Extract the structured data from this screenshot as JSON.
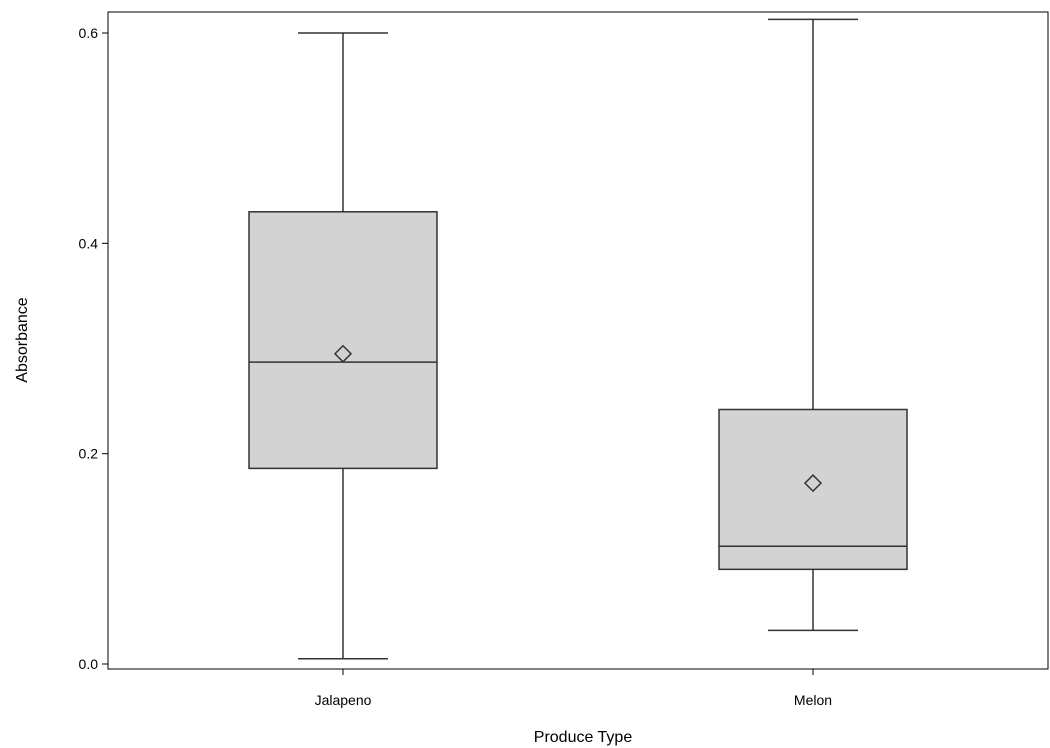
{
  "chart_data": {
    "type": "box",
    "xlabel": "Produce Type",
    "ylabel": "Absorbance",
    "ylim": [
      -0.005,
      0.62
    ],
    "yticks": [
      0.0,
      0.2,
      0.4,
      0.6
    ],
    "ytick_labels": [
      "0.0",
      "0.2",
      "0.4",
      "0.6"
    ],
    "categories": [
      "Jalapeno",
      "Melon"
    ],
    "boxes": [
      {
        "category": "Jalapeno",
        "min": 0.005,
        "q1": 0.186,
        "median": 0.287,
        "q3": 0.43,
        "max": 0.6,
        "mean": 0.295
      },
      {
        "category": "Melon",
        "min": 0.032,
        "q1": 0.09,
        "median": 0.112,
        "q3": 0.242,
        "max": 0.613,
        "mean": 0.172
      }
    ],
    "grid": false,
    "colors": {
      "box_fill": "#d3d3d3",
      "line": "#333333"
    }
  }
}
